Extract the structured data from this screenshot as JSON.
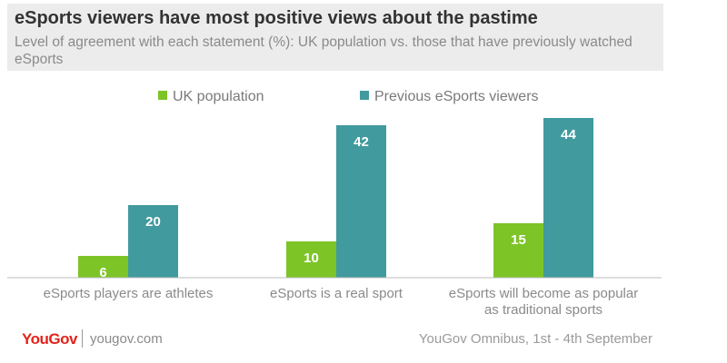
{
  "header": {
    "title": "eSports viewers have most positive views about the pastime",
    "subtitle": "Level of agreement with each statement (%): UK population vs. those that have previously watched eSports"
  },
  "footer": {
    "logo": "YouGov",
    "url": "yougov.com",
    "source": "YouGov Omnibus, 1st - 4th September"
  },
  "colors": {
    "uk_population": "#7dc427",
    "previous_viewers": "#419a9e"
  },
  "chart_data": {
    "type": "bar",
    "categories": [
      [
        "eSports players are athletes"
      ],
      [
        "eSports is a real sport"
      ],
      [
        "eSports will become as popular",
        "as traditional sports"
      ]
    ],
    "series": [
      {
        "name": "UK population",
        "values": [
          6,
          10,
          15
        ]
      },
      {
        "name": "Previous eSports viewers",
        "values": [
          20,
          42,
          44
        ]
      }
    ],
    "legend_position": "top",
    "ylim": [
      0,
      45
    ],
    "grid": false
  }
}
